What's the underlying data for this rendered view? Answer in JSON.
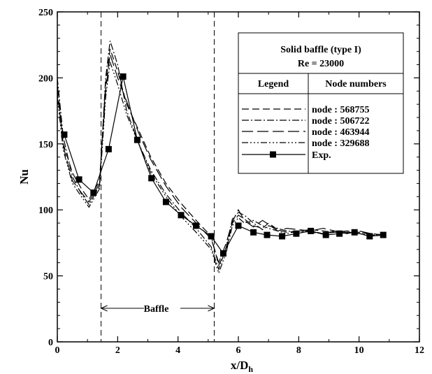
{
  "chart_data": {
    "type": "line",
    "title": "",
    "xlabel": "x/D",
    "xlabel_sub": "h",
    "ylabel": "Nu",
    "xlim": [
      0,
      12
    ],
    "ylim": [
      0,
      250
    ],
    "xticks": [
      "0",
      "2",
      "4",
      "6",
      "8",
      "10",
      "12"
    ],
    "yticks": [
      "0",
      "50",
      "100",
      "150",
      "200",
      "250"
    ],
    "grid": false,
    "legend": {
      "placement": "top-right",
      "title_line1": "Solid baffle (type I)",
      "title_line2": "Re = 23000",
      "col1_header": "Legend",
      "col2_header": "Node numbers"
    },
    "annotations": {
      "baffle_label": "Baffle",
      "baffle_start_x": 1.45,
      "baffle_end_x": 5.2
    },
    "series": [
      {
        "name": "node : 568755",
        "dash": "10,5",
        "x": [
          0.0,
          0.2,
          0.5,
          0.8,
          1.05,
          1.4,
          1.6,
          1.75,
          2.0,
          2.3,
          2.7,
          3.1,
          3.6,
          4.1,
          4.6,
          5.1,
          5.35,
          5.6,
          5.8,
          6.0,
          6.2,
          6.5,
          6.8,
          7.0,
          7.3,
          7.6,
          8.0,
          8.4,
          8.8,
          9.2,
          9.6,
          10.0,
          10.4,
          10.8
        ],
        "y": [
          190,
          150,
          128,
          116,
          108,
          122,
          195,
          222,
          205,
          180,
          160,
          140,
          120,
          105,
          92,
          80,
          58,
          70,
          90,
          96,
          93,
          88,
          86,
          90,
          85,
          83,
          84,
          85,
          84,
          83,
          84,
          83,
          82,
          81
        ]
      },
      {
        "name": "node : 506722",
        "dash": "10,3,2,3",
        "x": [
          0.0,
          0.2,
          0.5,
          0.8,
          1.05,
          1.4,
          1.6,
          1.75,
          2.0,
          2.3,
          2.7,
          3.1,
          3.6,
          4.1,
          4.6,
          5.1,
          5.35,
          5.6,
          5.8,
          6.0,
          6.2,
          6.5,
          6.8,
          7.0,
          7.3,
          7.6,
          8.0,
          8.4,
          8.8,
          9.2,
          9.6,
          10.0,
          10.4,
          10.8
        ],
        "y": [
          200,
          155,
          125,
          112,
          104,
          118,
          200,
          228,
          210,
          175,
          150,
          130,
          112,
          98,
          86,
          72,
          55,
          72,
          93,
          98,
          96,
          90,
          85,
          88,
          86,
          84,
          83,
          84,
          82,
          83,
          83,
          82,
          81,
          81
        ]
      },
      {
        "name": "node : 463944",
        "dash": "16,6",
        "x": [
          0.0,
          0.2,
          0.5,
          0.8,
          1.05,
          1.4,
          1.6,
          1.75,
          2.0,
          2.3,
          2.7,
          3.1,
          3.6,
          4.1,
          4.6,
          5.1,
          5.35,
          5.6,
          5.8,
          6.0,
          6.2,
          6.5,
          6.8,
          7.0,
          7.3,
          7.6,
          8.0,
          8.4,
          8.8,
          9.2,
          9.6,
          10.0,
          10.4,
          10.8
        ],
        "y": [
          195,
          148,
          122,
          113,
          106,
          120,
          190,
          218,
          200,
          182,
          158,
          138,
          118,
          102,
          90,
          78,
          60,
          75,
          91,
          100,
          92,
          87,
          92,
          89,
          84,
          86,
          85,
          84,
          86,
          84,
          82,
          84,
          82,
          81
        ]
      },
      {
        "name": "node : 329688",
        "dash": "9,3,2,3,2,3,2,3",
        "x": [
          0.0,
          0.2,
          0.5,
          0.8,
          1.05,
          1.4,
          1.6,
          1.75,
          2.0,
          2.3,
          2.7,
          3.1,
          3.6,
          4.1,
          4.6,
          5.1,
          5.35,
          5.6,
          5.8,
          6.0,
          6.2,
          6.5,
          6.8,
          7.0,
          7.3,
          7.6,
          8.0,
          8.4,
          8.8,
          9.2,
          9.6,
          10.0,
          10.4,
          10.8
        ],
        "y": [
          185,
          145,
          120,
          110,
          102,
          116,
          185,
          212,
          195,
          172,
          150,
          128,
          110,
          95,
          83,
          70,
          52,
          68,
          88,
          94,
          90,
          92,
          88,
          86,
          84,
          82,
          84,
          83,
          82,
          84,
          83,
          83,
          81,
          80
        ]
      },
      {
        "name": "Exp.",
        "dash": "",
        "marker": "square",
        "x": [
          0.23,
          0.72,
          1.2,
          1.7,
          2.18,
          2.65,
          3.12,
          3.6,
          4.1,
          4.6,
          5.1,
          5.5,
          6.0,
          6.5,
          6.95,
          7.45,
          7.92,
          8.4,
          8.9,
          9.35,
          9.85,
          10.35,
          10.8
        ],
        "y": [
          157,
          123,
          113,
          146,
          201,
          153,
          124,
          106,
          96,
          88,
          80,
          67,
          88,
          83,
          81,
          80,
          82,
          84,
          81,
          82,
          83,
          80,
          81
        ]
      }
    ]
  }
}
